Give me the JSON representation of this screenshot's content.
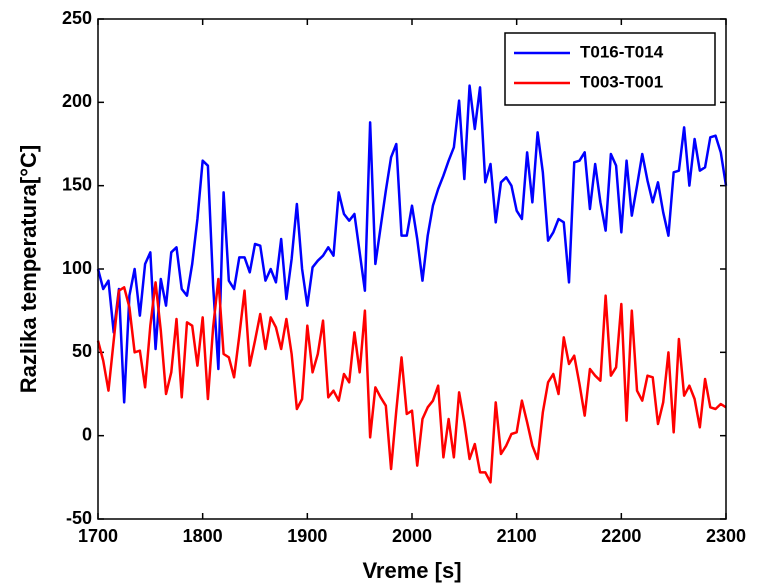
{
  "chart_data": {
    "type": "line",
    "x_label": "Vreme [s]",
    "y_label": "Razlika temperatura[°C]",
    "x": [
      1700,
      1705,
      1710,
      1715,
      1720,
      1725,
      1730,
      1735,
      1740,
      1745,
      1750,
      1755,
      1760,
      1765,
      1770,
      1775,
      1780,
      1785,
      1790,
      1795,
      1800,
      1805,
      1810,
      1815,
      1820,
      1825,
      1830,
      1835,
      1840,
      1845,
      1850,
      1855,
      1860,
      1865,
      1870,
      1875,
      1880,
      1885,
      1890,
      1895,
      1900,
      1905,
      1910,
      1915,
      1920,
      1925,
      1930,
      1935,
      1940,
      1945,
      1950,
      1955,
      1960,
      1965,
      1970,
      1975,
      1980,
      1985,
      1990,
      1995,
      2000,
      2005,
      2010,
      2015,
      2020,
      2025,
      2030,
      2035,
      2040,
      2045,
      2050,
      2055,
      2060,
      2065,
      2070,
      2075,
      2080,
      2085,
      2090,
      2095,
      2100,
      2105,
      2110,
      2115,
      2120,
      2125,
      2130,
      2135,
      2140,
      2145,
      2150,
      2155,
      2160,
      2165,
      2170,
      2175,
      2180,
      2185,
      2190,
      2195,
      2200,
      2205,
      2210,
      2215,
      2220,
      2225,
      2230,
      2235,
      2240,
      2245,
      2250,
      2255,
      2260,
      2265,
      2270,
      2275,
      2280,
      2285,
      2290,
      2295,
      2300
    ],
    "series": [
      {
        "name": "T016-T014",
        "color": "#0000ff",
        "values": [
          100,
          88,
          93,
          62,
          88,
          20,
          84,
          100,
          72,
          103,
          110,
          52,
          94,
          78,
          110,
          113,
          88,
          84,
          103,
          130,
          165,
          162,
          90,
          40,
          146,
          93,
          88,
          107,
          107,
          98,
          115,
          114,
          93,
          100,
          92,
          118,
          82,
          106,
          139,
          100,
          78,
          101,
          105,
          108,
          113,
          108,
          146,
          133,
          129,
          133,
          110,
          87,
          188,
          103,
          125,
          147,
          167,
          175,
          120,
          120,
          138,
          118,
          93,
          120,
          138,
          148,
          156,
          165,
          173,
          201,
          154,
          210,
          184,
          209,
          152,
          163,
          128,
          152,
          155,
          150,
          135,
          130,
          170,
          140,
          182,
          158,
          117,
          122,
          130,
          128,
          92,
          164,
          165,
          170,
          136,
          163,
          140,
          123,
          169,
          162,
          122,
          165,
          132,
          150,
          169,
          153,
          140,
          152,
          134,
          120,
          158,
          159,
          185,
          150,
          178,
          159,
          161,
          179,
          180,
          170,
          150
        ]
      },
      {
        "name": "T003-T001",
        "color": "#ff0000",
        "values": [
          57,
          45,
          27,
          57,
          87,
          89,
          77,
          50,
          51,
          29,
          66,
          92,
          63,
          25,
          38,
          70,
          23,
          68,
          66,
          42,
          71,
          22,
          65,
          94,
          49,
          47,
          35,
          60,
          87,
          42,
          57,
          73,
          52,
          71,
          65,
          52,
          70,
          49,
          16,
          22,
          66,
          38,
          49,
          69,
          23,
          27,
          21,
          37,
          32,
          62,
          38,
          75,
          -1,
          29,
          23,
          18,
          -20,
          15,
          47,
          13,
          15,
          -18,
          10,
          17,
          21,
          30,
          -13,
          10,
          -13,
          26,
          8,
          -14,
          -5,
          -22,
          -22,
          -28,
          20,
          -11,
          -6,
          1,
          2,
          21,
          8,
          -6,
          -14,
          14,
          32,
          37,
          25,
          59,
          43,
          48,
          31,
          12,
          40,
          36,
          33,
          84,
          36,
          41,
          79,
          9,
          75,
          27,
          21,
          36,
          35,
          7,
          20,
          50,
          2,
          58,
          24,
          30,
          22,
          5,
          34,
          17,
          16,
          19,
          17
        ]
      }
    ],
    "xlim": [
      1700,
      2300
    ],
    "xticks": [
      1700,
      1800,
      1900,
      2000,
      2100,
      2200,
      2300
    ],
    "ylim": [
      -50,
      250
    ],
    "yticks": [
      -50,
      0,
      50,
      100,
      150,
      200,
      250
    ],
    "grid": false,
    "legend": "northeast"
  }
}
